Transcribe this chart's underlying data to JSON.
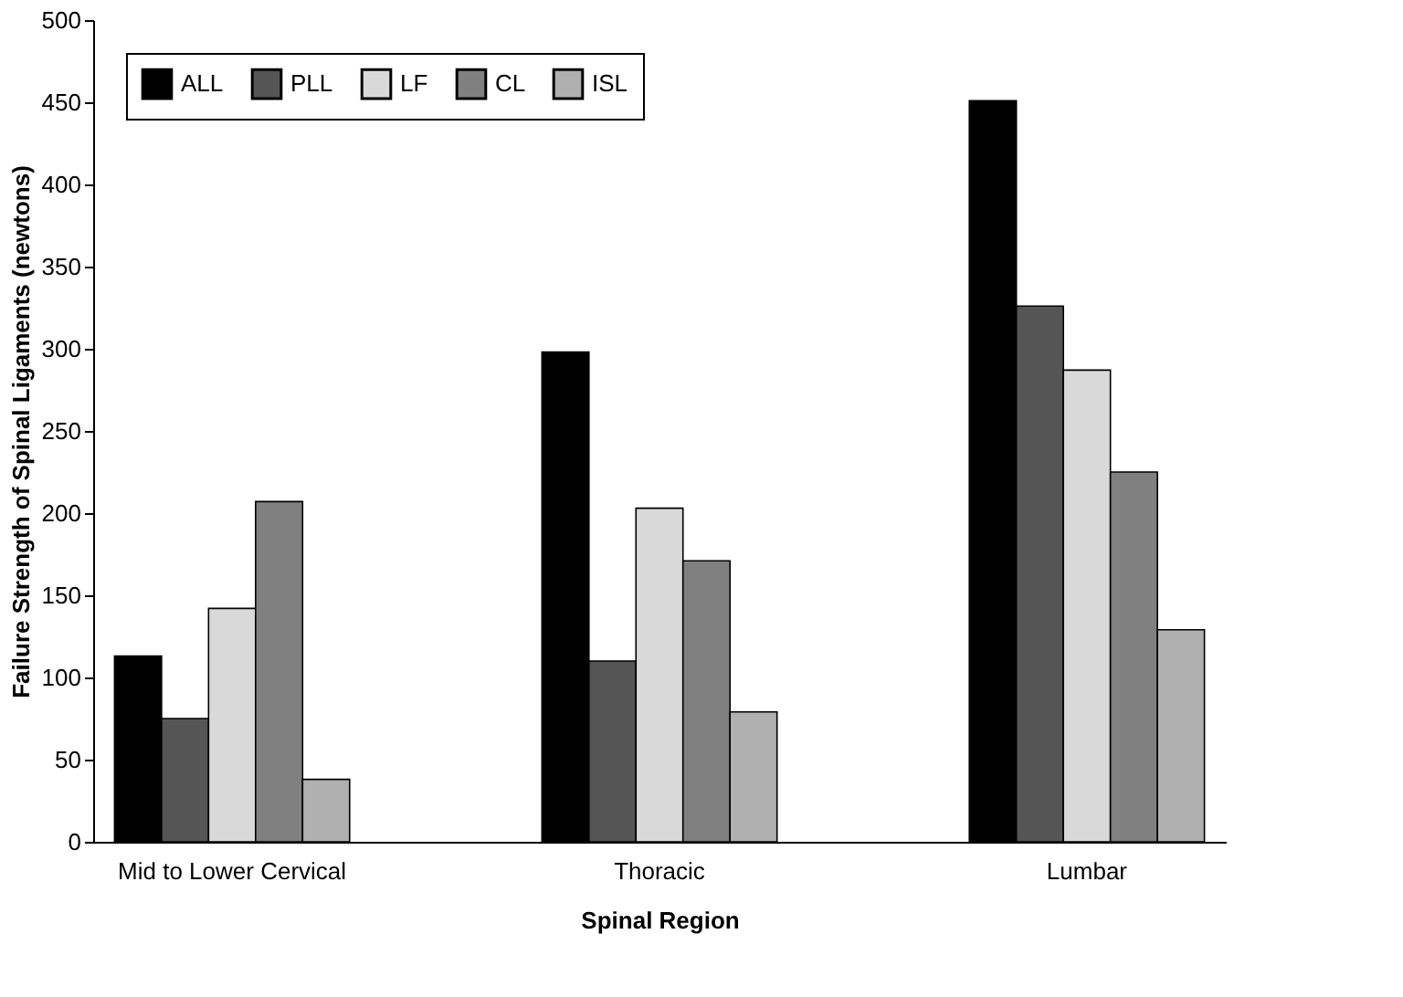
{
  "chart_data": {
    "type": "bar",
    "xlabel": "Spinal Region",
    "ylabel": "Failure Strength of Spinal Ligaments (newtons)",
    "categories": [
      "Mid to Lower Cervical",
      "Thoracic",
      "Lumbar"
    ],
    "series": [
      {
        "name": "ALL",
        "color": "#000000",
        "values": [
          113,
          298,
          451
        ]
      },
      {
        "name": "PLL",
        "color": "#555555",
        "values": [
          75,
          110,
          326
        ]
      },
      {
        "name": "LF",
        "color": "#d9d9d9",
        "values": [
          142,
          203,
          287
        ]
      },
      {
        "name": "CL",
        "color": "#808080",
        "values": [
          207,
          171,
          225
        ]
      },
      {
        "name": "ISL",
        "color": "#b0b0b0",
        "values": [
          38,
          79,
          129
        ]
      }
    ],
    "ylim": [
      0,
      500
    ],
    "yticks": [
      0,
      50,
      100,
      150,
      200,
      250,
      300,
      350,
      400,
      450,
      500
    ],
    "grid": false,
    "legend": "top left"
  }
}
